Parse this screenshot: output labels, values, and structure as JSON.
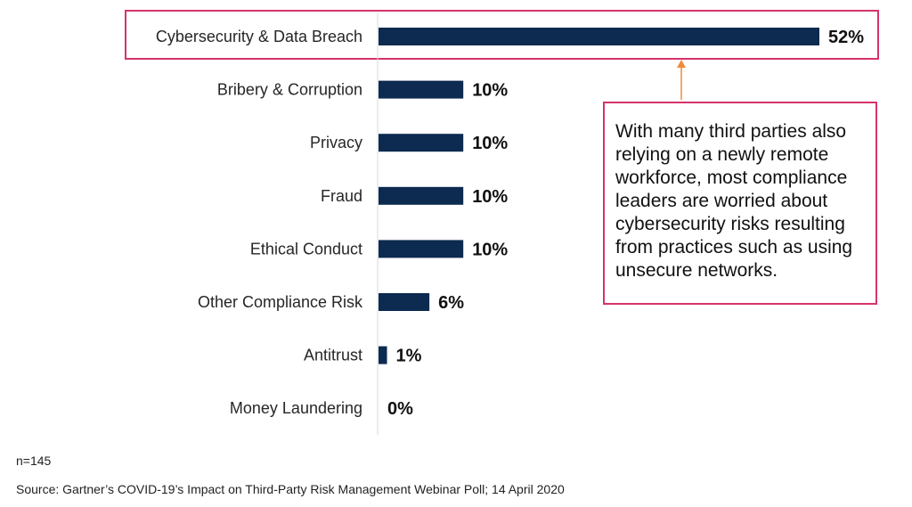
{
  "chart_data": {
    "type": "bar",
    "orientation": "horizontal",
    "categories": [
      "Cybersecurity & Data Breach",
      "Bribery & Corruption",
      "Privacy",
      "Fraud",
      "Ethical Conduct",
      "Other Compliance Risk",
      "Antitrust",
      "Money Laundering"
    ],
    "values": [
      52,
      10,
      10,
      10,
      10,
      6,
      1,
      0
    ],
    "value_labels": [
      "52%",
      "10%",
      "10%",
      "10%",
      "10%",
      "6%",
      "1%",
      "0%"
    ],
    "xlim": [
      0,
      52
    ],
    "grid": false,
    "highlighted_category": "Cybersecurity & Data Breach"
  },
  "callout": {
    "text": "With many third parties also relying on a newly remote workforce, most compliance leaders are worried about cybersecurity risks resulting from practices such as using unsecure networks."
  },
  "footer": {
    "sample_size": "n=145",
    "source": "Source: Gartner’s COVID-19’s Impact on Third-Party Risk Management Webinar Poll; 14 April 2020"
  },
  "colors": {
    "bar": "#0d2a50",
    "highlight_border": "#d6336c",
    "arrow": "#f08a3c"
  }
}
